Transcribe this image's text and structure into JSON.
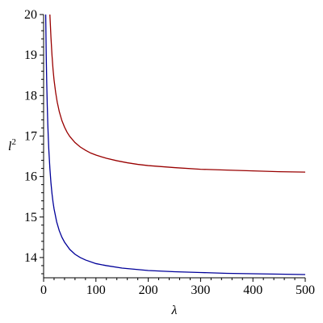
{
  "chart_data": {
    "type": "line",
    "title": "",
    "xlabel": "λ",
    "ylabel_base": "l",
    "ylabel_sup": "2",
    "xlim": [
      0,
      500
    ],
    "ylim": [
      13.5,
      20
    ],
    "xticks": [
      0,
      100,
      200,
      300,
      400,
      500
    ],
    "yticks": [
      14,
      15,
      16,
      17,
      18,
      19,
      20
    ],
    "grid": false,
    "legend": "none",
    "series": [
      {
        "color": "#990000",
        "x": [
          12,
          14,
          16,
          18,
          20,
          23,
          26,
          30,
          35,
          40,
          45,
          50,
          60,
          70,
          80,
          90,
          100,
          120,
          140,
          160,
          180,
          200,
          250,
          300,
          350,
          400,
          450,
          500
        ],
        "y": [
          20.0,
          19.45,
          19.0,
          18.65,
          18.38,
          18.08,
          17.84,
          17.6,
          17.38,
          17.22,
          17.09,
          16.99,
          16.84,
          16.73,
          16.65,
          16.58,
          16.53,
          16.45,
          16.39,
          16.34,
          16.3,
          16.27,
          16.22,
          16.18,
          16.16,
          16.14,
          16.12,
          16.11
        ]
      },
      {
        "color": "#000099",
        "x": [
          4,
          5,
          6,
          7,
          8,
          9,
          10,
          12,
          14,
          16,
          18,
          20,
          25,
          30,
          35,
          40,
          50,
          60,
          70,
          80,
          100,
          120,
          150,
          200,
          250,
          300,
          350,
          400,
          450,
          500
        ],
        "y": [
          20.0,
          19.0,
          18.3,
          17.75,
          17.3,
          16.95,
          16.65,
          16.2,
          15.85,
          15.58,
          15.37,
          15.2,
          14.88,
          14.66,
          14.5,
          14.38,
          14.2,
          14.08,
          14.0,
          13.94,
          13.85,
          13.8,
          13.74,
          13.68,
          13.65,
          13.63,
          13.61,
          13.6,
          13.59,
          13.58
        ]
      }
    ]
  }
}
